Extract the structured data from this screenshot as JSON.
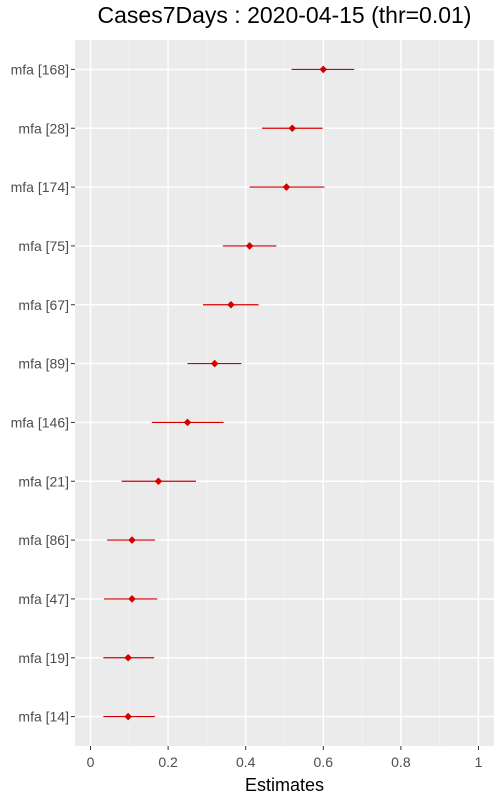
{
  "chart_data": {
    "type": "scatter",
    "title": "Cases7Days : 2020-04-15 (thr=0.01)",
    "xlabel": "Estimates",
    "ylabel": "",
    "xlim": [
      -0.04,
      1.04
    ],
    "x_ticks": [
      0,
      0.2,
      0.4,
      0.6,
      0.8,
      1
    ],
    "x_tick_labels": [
      "0",
      "0.2",
      "0.4",
      "0.6",
      "0.8",
      "1"
    ],
    "grid": true,
    "legend": "none",
    "categories": [
      "mfa [168]",
      "mfa [28]",
      "mfa [174]",
      "mfa [75]",
      "mfa [67]",
      "mfa [89]",
      "mfa [146]",
      "mfa [21]",
      "mfa [86]",
      "mfa [47]",
      "mfa [19]",
      "mfa [14]"
    ],
    "estimates": [
      0.6,
      0.52,
      0.505,
      0.41,
      0.362,
      0.32,
      0.25,
      0.175,
      0.107,
      0.107,
      0.097,
      0.097
    ],
    "lower": [
      0.518,
      0.442,
      0.41,
      0.341,
      0.29,
      0.25,
      0.158,
      0.08,
      0.043,
      0.035,
      0.033,
      0.033
    ],
    "upper": [
      0.68,
      0.598,
      0.603,
      0.479,
      0.433,
      0.389,
      0.343,
      0.272,
      0.166,
      0.172,
      0.164,
      0.166
    ],
    "colors": {
      "point": "#d40000",
      "panel": "#ebebeb",
      "grid_major": "#ffffff",
      "grid_minor": "#f5f5f5"
    }
  }
}
